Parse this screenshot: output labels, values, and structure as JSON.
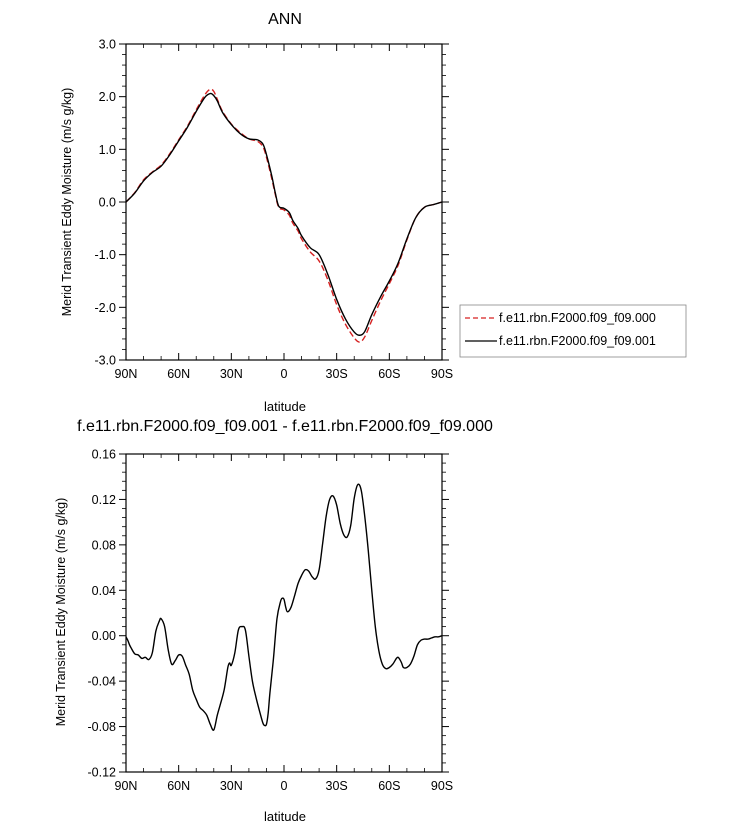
{
  "chart_data": [
    {
      "type": "line",
      "title": "ANN",
      "xlabel": "latitude",
      "ylabel": "Merid Transient Eddy Moisture (m/s g/kg)",
      "xlim": [
        -90,
        90
      ],
      "ylim": [
        -3.0,
        3.0
      ],
      "xticks": [
        -90,
        -60,
        -30,
        0,
        30,
        60,
        90
      ],
      "xtick_labels": [
        "90N",
        "60N",
        "30N",
        "0",
        "30S",
        "60S",
        "90S"
      ],
      "yticks": [
        -3,
        -2,
        -1,
        0,
        1,
        2,
        3
      ],
      "ytick_labels": [
        "-3.0",
        "-2.0",
        "-1.0",
        "0.0",
        "1.0",
        "2.0",
        "3.0"
      ],
      "legend_position": "right",
      "series": [
        {
          "name": "f.e11.rbn.F2000.f09_f09.000",
          "color": "#d62020",
          "dash": "dashed",
          "x": [
            -90,
            -85,
            -80,
            -75,
            -70,
            -65,
            -60,
            -55,
            -50,
            -45,
            -42,
            -40,
            -38,
            -35,
            -30,
            -25,
            -20,
            -15,
            -12,
            -10,
            -7,
            -5,
            -3,
            0,
            3,
            5,
            8,
            10,
            15,
            20,
            25,
            30,
            35,
            40,
            43,
            46,
            50,
            55,
            60,
            65,
            70,
            75,
            80,
            85,
            90
          ],
          "y": [
            0.0,
            0.18,
            0.42,
            0.57,
            0.7,
            0.92,
            1.18,
            1.44,
            1.75,
            2.04,
            2.14,
            2.1,
            1.95,
            1.72,
            1.48,
            1.32,
            1.2,
            1.15,
            1.05,
            0.85,
            0.45,
            0.15,
            -0.1,
            -0.15,
            -0.25,
            -0.4,
            -0.55,
            -0.7,
            -0.95,
            -1.12,
            -1.48,
            -1.95,
            -2.32,
            -2.58,
            -2.66,
            -2.56,
            -2.25,
            -1.88,
            -1.55,
            -1.2,
            -0.72,
            -0.3,
            -0.1,
            -0.05,
            0.0
          ]
        },
        {
          "name": "f.e11.rbn.F2000.f09_f09.001",
          "color": "#000000",
          "dash": "solid",
          "x": [
            -90,
            -85,
            -80,
            -75,
            -70,
            -65,
            -60,
            -55,
            -50,
            -45,
            -42,
            -40,
            -38,
            -35,
            -30,
            -25,
            -20,
            -15,
            -12,
            -10,
            -7,
            -5,
            -3,
            0,
            3,
            5,
            8,
            10,
            15,
            20,
            25,
            30,
            35,
            40,
            43,
            46,
            50,
            55,
            60,
            65,
            70,
            75,
            80,
            85,
            90
          ],
          "y": [
            0.0,
            0.17,
            0.4,
            0.56,
            0.68,
            0.9,
            1.16,
            1.42,
            1.72,
            1.99,
            2.06,
            2.02,
            1.92,
            1.7,
            1.47,
            1.3,
            1.2,
            1.18,
            1.1,
            0.9,
            0.5,
            0.18,
            -0.08,
            -0.12,
            -0.2,
            -0.35,
            -0.5,
            -0.64,
            -0.87,
            -1.0,
            -1.38,
            -1.85,
            -2.22,
            -2.47,
            -2.53,
            -2.46,
            -2.14,
            -1.8,
            -1.5,
            -1.16,
            -0.7,
            -0.3,
            -0.1,
            -0.05,
            0.0
          ]
        }
      ]
    },
    {
      "type": "line",
      "title": "f.e11.rbn.F2000.f09_f09.001 - f.e11.rbn.F2000.f09_f09.000",
      "xlabel": "latitude",
      "ylabel": "Merid Transient Eddy Moisture (m/s g/kg)",
      "xlim": [
        -90,
        90
      ],
      "ylim": [
        -0.12,
        0.16
      ],
      "xticks": [
        -90,
        -60,
        -30,
        0,
        30,
        60,
        90
      ],
      "xtick_labels": [
        "90N",
        "60N",
        "30N",
        "0",
        "30S",
        "60S",
        "90S"
      ],
      "yticks": [
        -0.12,
        -0.08,
        -0.04,
        0.0,
        0.04,
        0.08,
        0.12,
        0.16
      ],
      "ytick_labels": [
        "-0.12",
        "-0.08",
        "-0.04",
        "0.00",
        "0.04",
        "0.08",
        "0.12",
        "0.16"
      ],
      "series": [
        {
          "name": "difference",
          "color": "#000000",
          "dash": "solid",
          "x": [
            -90,
            -89,
            -88,
            -87,
            -85,
            -83,
            -81,
            -79,
            -77,
            -75,
            -73,
            -71,
            -70,
            -68,
            -66,
            -64,
            -62,
            -60,
            -58,
            -56,
            -54,
            -52,
            -50,
            -48,
            -46,
            -44,
            -42,
            -40,
            -38,
            -36,
            -34,
            -32,
            -31,
            -30,
            -28,
            -26,
            -24,
            -22,
            -20,
            -18,
            -16,
            -14,
            -12,
            -11,
            -10,
            -9,
            -8,
            -6,
            -4,
            -2,
            -1,
            0,
            1,
            2,
            4,
            6,
            8,
            10,
            12,
            14,
            16,
            18,
            20,
            22,
            24,
            26,
            28,
            30,
            32,
            34,
            36,
            38,
            40,
            42,
            44,
            46,
            48,
            50,
            52,
            54,
            56,
            58,
            60,
            62,
            64,
            65,
            66,
            67,
            68,
            70,
            72,
            74,
            76,
            78,
            80,
            82,
            84,
            86,
            88,
            90
          ],
          "y": [
            -0.001,
            -0.004,
            -0.008,
            -0.011,
            -0.016,
            -0.017,
            -0.02,
            -0.019,
            -0.021,
            -0.015,
            0.004,
            0.013,
            0.015,
            0.008,
            -0.012,
            -0.025,
            -0.022,
            -0.017,
            -0.018,
            -0.026,
            -0.034,
            -0.048,
            -0.056,
            -0.063,
            -0.066,
            -0.07,
            -0.078,
            -0.083,
            -0.07,
            -0.059,
            -0.047,
            -0.028,
            -0.024,
            -0.026,
            -0.015,
            0.005,
            0.008,
            0.005,
            -0.018,
            -0.04,
            -0.054,
            -0.066,
            -0.077,
            -0.079,
            -0.078,
            -0.068,
            -0.05,
            -0.02,
            0.015,
            0.03,
            0.033,
            0.032,
            0.025,
            0.021,
            0.025,
            0.035,
            0.046,
            0.053,
            0.058,
            0.057,
            0.052,
            0.05,
            0.058,
            0.081,
            0.105,
            0.12,
            0.123,
            0.115,
            0.099,
            0.089,
            0.087,
            0.097,
            0.121,
            0.133,
            0.128,
            0.105,
            0.075,
            0.04,
            0.008,
            -0.013,
            -0.025,
            -0.029,
            -0.028,
            -0.025,
            -0.02,
            -0.019,
            -0.021,
            -0.024,
            -0.028,
            -0.028,
            -0.025,
            -0.018,
            -0.008,
            -0.004,
            -0.003,
            -0.003,
            -0.002,
            -0.001,
            -0.001,
            0.0
          ]
        }
      ]
    }
  ]
}
